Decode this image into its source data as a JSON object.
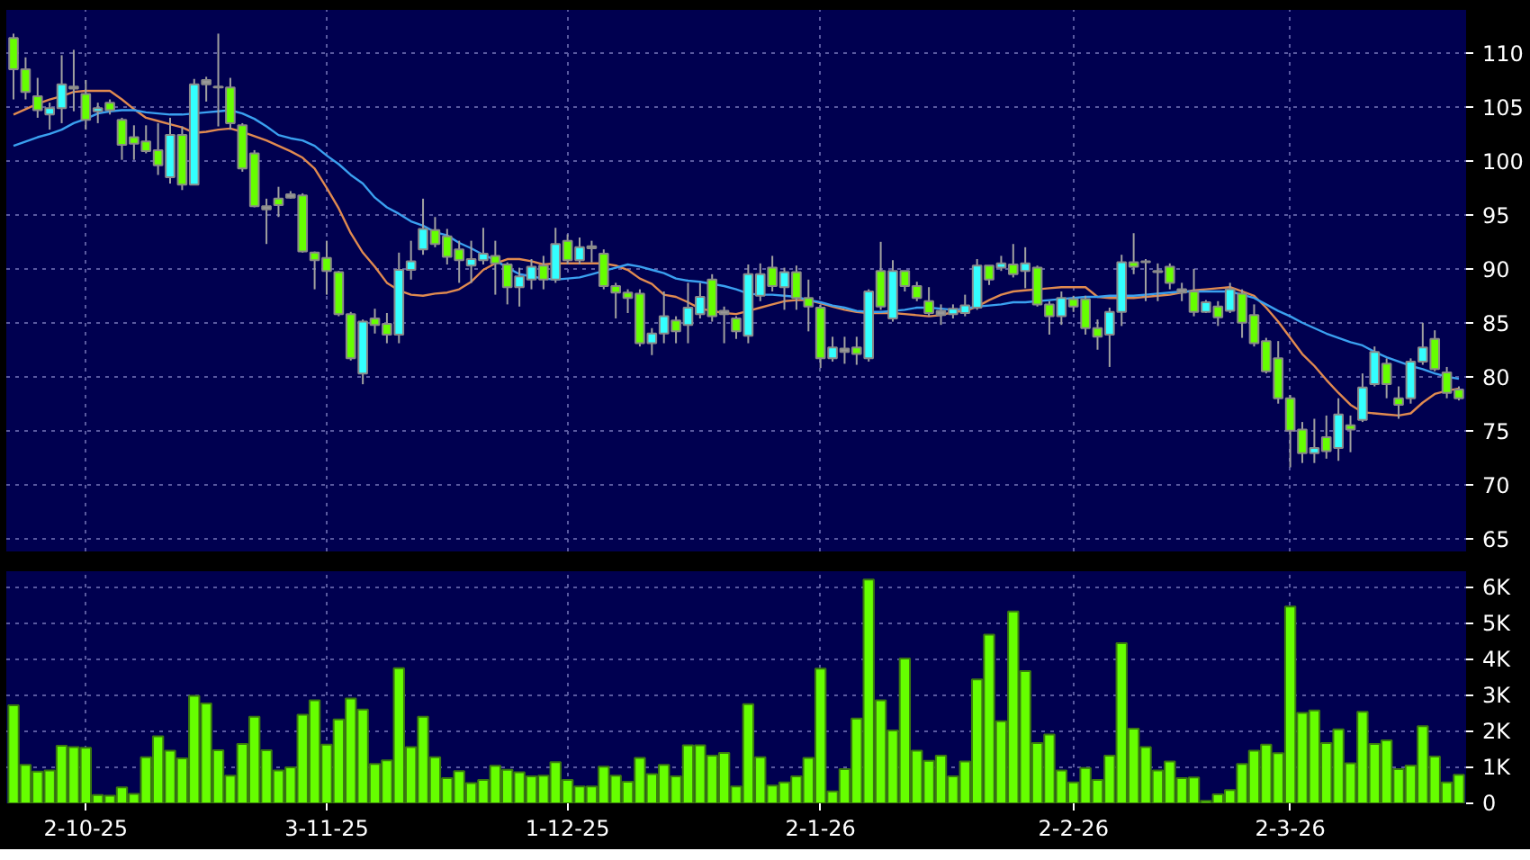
{
  "chart_data": [
    {
      "type": "candlestick",
      "tick_labels": "y",
      "grid": true,
      "ylim": [
        63.8,
        114
      ],
      "yticks": [
        65,
        70,
        75,
        80,
        85,
        90,
        95,
        100,
        105,
        110
      ],
      "categories": [
        null,
        null,
        null,
        null,
        null,
        null,
        null,
        null,
        null,
        null,
        null,
        null,
        null,
        null,
        null,
        null,
        null,
        null,
        null,
        null,
        null,
        null,
        null,
        null,
        null,
        null,
        null,
        null,
        null,
        null,
        null,
        null,
        null,
        null,
        null,
        null,
        null,
        null,
        null,
        null,
        null,
        null,
        null,
        null,
        null,
        null,
        null,
        null,
        null,
        null,
        null,
        null,
        null,
        null,
        null,
        null,
        null,
        null,
        null,
        null,
        null,
        null,
        null,
        null,
        null,
        null,
        null,
        null,
        null,
        null,
        null,
        null,
        null,
        null,
        null,
        null,
        null,
        null,
        null,
        null,
        null,
        null,
        null,
        null,
        null,
        null,
        null,
        null,
        null,
        null,
        null,
        null,
        null,
        null,
        null,
        null,
        null,
        null,
        null,
        null,
        null,
        null,
        null,
        null,
        null,
        null,
        null,
        null,
        null,
        null,
        null,
        null,
        null,
        null,
        null,
        null,
        null,
        null,
        null,
        null,
        null
      ],
      "ohlc": [
        [
          111.4,
          111.8,
          105.7,
          108.5
        ],
        [
          108.5,
          109.6,
          105.7,
          106.4
        ],
        [
          106.0,
          107.7,
          104.0,
          104.7
        ],
        [
          104.3,
          105.4,
          102.9,
          104.9
        ],
        [
          104.9,
          109.8,
          103.5,
          107.1
        ],
        [
          106.9,
          110.3,
          104.6,
          106.7
        ],
        [
          106.2,
          107.5,
          102.9,
          103.8
        ],
        [
          104.6,
          105.4,
          103.5,
          104.9
        ],
        [
          105.4,
          105.7,
          104.3,
          104.7
        ],
        [
          103.8,
          104.0,
          100.1,
          101.5
        ],
        [
          102.2,
          103.3,
          100.1,
          101.6
        ],
        [
          101.8,
          103.3,
          100.7,
          100.9
        ],
        [
          101.0,
          103.5,
          98.7,
          99.6
        ],
        [
          98.5,
          104.0,
          97.9,
          102.4
        ],
        [
          102.4,
          103.2,
          97.3,
          97.8
        ],
        [
          97.8,
          107.6,
          97.8,
          107.1
        ],
        [
          107.5,
          107.8,
          105.5,
          107.1
        ],
        [
          106.9,
          111.8,
          103.2,
          106.8
        ],
        [
          106.8,
          107.7,
          102.9,
          103.5
        ],
        [
          103.3,
          103.5,
          99.0,
          99.3
        ],
        [
          100.7,
          101.0,
          95.7,
          95.8
        ],
        [
          95.8,
          96.5,
          92.3,
          95.5
        ],
        [
          96.5,
          97.6,
          94.8,
          95.9
        ],
        [
          96.9,
          97.2,
          96.5,
          96.6
        ],
        [
          96.8,
          97.0,
          91.5,
          91.6
        ],
        [
          91.5,
          91.6,
          88.1,
          90.8
        ],
        [
          91.0,
          92.6,
          87.6,
          89.8
        ],
        [
          89.7,
          89.8,
          85.6,
          85.8
        ],
        [
          85.8,
          86.0,
          81.5,
          81.7
        ],
        [
          80.3,
          85.3,
          79.3,
          85.1
        ],
        [
          85.4,
          86.3,
          84.0,
          84.8
        ],
        [
          84.9,
          85.9,
          83.1,
          83.9
        ],
        [
          83.9,
          91.5,
          83.1,
          89.9
        ],
        [
          89.9,
          92.6,
          89.0,
          90.7
        ],
        [
          91.8,
          96.5,
          91.3,
          93.7
        ],
        [
          93.6,
          94.8,
          92.0,
          92.3
        ],
        [
          93.0,
          93.7,
          90.4,
          91.1
        ],
        [
          91.8,
          92.6,
          88.7,
          90.8
        ],
        [
          90.3,
          92.6,
          88.7,
          90.9
        ],
        [
          90.8,
          93.8,
          90.4,
          91.4
        ],
        [
          91.2,
          92.6,
          87.6,
          90.5
        ],
        [
          90.4,
          90.6,
          86.7,
          88.3
        ],
        [
          88.3,
          90.1,
          86.5,
          89.3
        ],
        [
          89.0,
          90.9,
          88.1,
          90.2
        ],
        [
          90.3,
          91.2,
          88.1,
          89.0
        ],
        [
          89.0,
          93.8,
          88.7,
          92.3
        ],
        [
          92.6,
          93.2,
          90.4,
          90.8
        ],
        [
          90.8,
          92.9,
          90.4,
          92.0
        ],
        [
          92.1,
          92.6,
          90.6,
          91.9
        ],
        [
          91.4,
          91.8,
          88.1,
          88.4
        ],
        [
          88.4,
          88.7,
          85.4,
          87.8
        ],
        [
          87.8,
          88.1,
          85.9,
          87.3
        ],
        [
          87.7,
          88.1,
          82.8,
          83.1
        ],
        [
          83.1,
          84.5,
          82.0,
          84.0
        ],
        [
          84.0,
          87.9,
          83.1,
          85.6
        ],
        [
          85.2,
          85.6,
          83.1,
          84.2
        ],
        [
          84.8,
          88.7,
          83.1,
          86.4
        ],
        [
          85.8,
          88.7,
          85.4,
          87.4
        ],
        [
          89.0,
          89.5,
          85.1,
          85.6
        ],
        [
          86.1,
          86.5,
          83.1,
          85.8
        ],
        [
          85.4,
          85.6,
          83.5,
          84.2
        ],
        [
          83.8,
          90.4,
          83.1,
          89.5
        ],
        [
          87.5,
          90.5,
          87.0,
          89.5
        ],
        [
          90.1,
          91.2,
          87.9,
          88.4
        ],
        [
          88.3,
          90.1,
          86.2,
          89.7
        ],
        [
          89.7,
          90.3,
          86.2,
          87.3
        ],
        [
          87.3,
          89.0,
          84.2,
          86.5
        ],
        [
          86.4,
          86.7,
          80.8,
          81.7
        ],
        [
          81.7,
          83.7,
          81.4,
          82.7
        ],
        [
          82.6,
          83.7,
          81.2,
          82.3
        ],
        [
          82.7,
          83.7,
          81.1,
          82.1
        ],
        [
          81.7,
          88.1,
          81.4,
          87.9
        ],
        [
          89.8,
          92.5,
          86.2,
          86.5
        ],
        [
          85.4,
          90.8,
          85.1,
          89.8
        ],
        [
          89.8,
          89.8,
          87.9,
          88.4
        ],
        [
          88.4,
          88.8,
          87.0,
          87.3
        ],
        [
          87.0,
          88.3,
          85.6,
          85.9
        ],
        [
          86.1,
          86.7,
          84.8,
          85.7
        ],
        [
          85.8,
          86.7,
          85.4,
          86.3
        ],
        [
          85.9,
          87.6,
          85.6,
          86.6
        ],
        [
          86.4,
          90.9,
          86.2,
          90.3
        ],
        [
          90.3,
          90.3,
          88.5,
          89.0
        ],
        [
          90.1,
          91.2,
          89.8,
          90.5
        ],
        [
          90.4,
          92.3,
          89.2,
          89.5
        ],
        [
          89.8,
          92.0,
          88.2,
          90.5
        ],
        [
          90.1,
          90.3,
          86.5,
          86.7
        ],
        [
          86.7,
          87.0,
          83.9,
          85.6
        ],
        [
          85.6,
          87.9,
          84.8,
          87.3
        ],
        [
          87.2,
          87.5,
          86.0,
          86.5
        ],
        [
          87.2,
          87.5,
          83.9,
          84.5
        ],
        [
          84.5,
          85.3,
          82.5,
          83.7
        ],
        [
          83.9,
          86.4,
          80.9,
          86.0
        ],
        [
          86.0,
          91.3,
          84.7,
          90.6
        ],
        [
          90.6,
          93.3,
          89.5,
          90.2
        ],
        [
          90.7,
          90.9,
          87.0,
          90.6
        ],
        [
          89.8,
          90.5,
          87.0,
          89.7
        ],
        [
          90.2,
          90.5,
          88.1,
          88.7
        ],
        [
          88.1,
          88.7,
          87.0,
          87.8
        ],
        [
          87.9,
          90.0,
          85.6,
          86.0
        ],
        [
          86.0,
          87.1,
          85.9,
          86.9
        ],
        [
          86.5,
          87.0,
          84.7,
          85.5
        ],
        [
          86.1,
          88.7,
          85.9,
          88.1
        ],
        [
          87.7,
          88.1,
          83.6,
          85.0
        ],
        [
          85.7,
          86.7,
          82.8,
          83.1
        ],
        [
          83.3,
          83.6,
          80.3,
          80.5
        ],
        [
          81.7,
          83.3,
          77.5,
          78.0
        ],
        [
          78.0,
          78.3,
          71.6,
          75.0
        ],
        [
          75.1,
          75.8,
          72.0,
          72.9
        ],
        [
          72.9,
          76.1,
          72.0,
          73.4
        ],
        [
          74.4,
          76.4,
          72.4,
          73.1
        ],
        [
          73.4,
          78.0,
          72.2,
          76.5
        ],
        [
          75.5,
          76.4,
          73.0,
          75.1
        ],
        [
          76.0,
          80.3,
          75.8,
          79.0
        ],
        [
          79.3,
          82.8,
          79.1,
          82.3
        ],
        [
          81.2,
          81.7,
          78.0,
          79.3
        ],
        [
          78.0,
          79.1,
          76.1,
          77.4
        ],
        [
          78.0,
          81.7,
          77.5,
          81.4
        ],
        [
          81.4,
          85.0,
          81.1,
          82.7
        ],
        [
          83.5,
          84.3,
          80.5,
          80.7
        ],
        [
          80.4,
          80.9,
          78.0,
          78.5
        ],
        [
          78.8,
          79.1,
          77.8,
          78.0
        ]
      ],
      "colors": [
        "#66ff00",
        "#66ff00",
        "#66ff00",
        "#33ffff",
        "#33ffff",
        "#999999",
        "#66ff00",
        "#33ffff",
        "#66ff00",
        "#66ff00",
        "#66ff00",
        "#66ff00",
        "#66ff00",
        "#33ffff",
        "#66ff00",
        "#33ffff",
        "#999999",
        "#999999",
        "#66ff00",
        "#66ff00",
        "#66ff00",
        "#999999",
        "#66ff00",
        "#999999",
        "#66ff00",
        "#66ff00",
        "#66ff00",
        "#66ff00",
        "#66ff00",
        "#33ffff",
        "#66ff00",
        "#66ff00",
        "#33ffff",
        "#33ffff",
        "#33ffff",
        "#66ff00",
        "#66ff00",
        "#66ff00",
        "#33ffff",
        "#33ffff",
        "#66ff00",
        "#66ff00",
        "#33ffff",
        "#33ffff",
        "#66ff00",
        "#33ffff",
        "#66ff00",
        "#33ffff",
        "#999999",
        "#66ff00",
        "#66ff00",
        "#66ff00",
        "#66ff00",
        "#33ffff",
        "#33ffff",
        "#66ff00",
        "#33ffff",
        "#33ffff",
        "#66ff00",
        "#999999",
        "#66ff00",
        "#33ffff",
        "#33ffff",
        "#66ff00",
        "#33ffff",
        "#66ff00",
        "#66ff00",
        "#66ff00",
        "#33ffff",
        "#999999",
        "#66ff00",
        "#33ffff",
        "#66ff00",
        "#33ffff",
        "#66ff00",
        "#66ff00",
        "#66ff00",
        "#999999",
        "#33ffff",
        "#33ffff",
        "#33ffff",
        "#66ff00",
        "#33ffff",
        "#66ff00",
        "#33ffff",
        "#66ff00",
        "#66ff00",
        "#33ffff",
        "#66ff00",
        "#66ff00",
        "#66ff00",
        "#33ffff",
        "#33ffff",
        "#66ff00",
        "#999999",
        "#999999",
        "#66ff00",
        "#999999",
        "#66ff00",
        "#33ffff",
        "#66ff00",
        "#33ffff",
        "#66ff00",
        "#66ff00",
        "#66ff00",
        "#66ff00",
        "#66ff00",
        "#66ff00",
        "#33ffff",
        "#66ff00",
        "#33ffff",
        "#66ff00",
        "#33ffff",
        "#33ffff",
        "#66ff00",
        "#66ff00",
        "#33ffff",
        "#33ffff",
        "#66ff00",
        "#66ff00",
        "#66ff00"
      ],
      "series": [
        {
          "type": "line",
          "color": "#e08a50",
          "values": [
            104.3,
            104.8,
            105.3,
            105.7,
            106.0,
            106.4,
            106.5,
            106.5,
            106.5,
            105.7,
            104.8,
            104.0,
            103.7,
            103.4,
            103.1,
            102.6,
            102.7,
            102.9,
            103.0,
            102.7,
            102.3,
            101.9,
            101.4,
            100.9,
            100.3,
            99.3,
            97.5,
            95.6,
            93.3,
            91.5,
            90.2,
            88.7,
            88.0,
            87.6,
            87.5,
            87.7,
            87.8,
            88.1,
            88.8,
            89.9,
            90.5,
            90.9,
            90.9,
            90.7,
            90.4,
            90.5,
            90.5,
            90.5,
            90.5,
            90.5,
            90.3,
            89.9,
            89.1,
            88.6,
            87.6,
            87.4,
            86.9,
            86.3,
            86.1,
            85.9,
            85.8,
            86.1,
            86.4,
            86.7,
            87.0,
            87.1,
            87.1,
            86.8,
            86.5,
            86.2,
            86.0,
            85.9,
            85.9,
            85.9,
            85.8,
            85.7,
            85.6,
            85.7,
            86.0,
            86.1,
            86.5,
            87.1,
            87.6,
            87.9,
            88.0,
            88.1,
            88.2,
            88.3,
            88.3,
            88.3,
            87.4,
            87.3,
            87.3,
            87.3,
            87.4,
            87.5,
            87.6,
            87.8,
            88.0,
            88.1,
            88.2,
            88.3,
            87.9,
            87.5,
            86.4,
            85.1,
            83.6,
            82.1,
            81.0,
            79.7,
            78.5,
            77.4,
            76.7,
            76.6,
            76.5,
            76.4,
            76.6,
            77.6,
            78.4,
            78.7,
            78.9
          ]
        },
        {
          "type": "line",
          "color": "#3aa0f0",
          "values": [
            101.4,
            101.8,
            102.2,
            102.5,
            102.9,
            103.5,
            103.9,
            104.4,
            104.6,
            104.7,
            104.7,
            104.5,
            104.4,
            104.3,
            104.3,
            104.4,
            104.5,
            104.6,
            104.7,
            104.4,
            103.9,
            103.2,
            102.4,
            102.1,
            101.9,
            101.4,
            100.5,
            99.7,
            98.7,
            97.9,
            96.6,
            95.7,
            95.1,
            94.4,
            94.0,
            93.4,
            93.1,
            92.4,
            91.9,
            91.3,
            90.8,
            90.1,
            89.5,
            89.3,
            89.1,
            89.0,
            89.1,
            89.2,
            89.5,
            89.8,
            90.1,
            90.4,
            90.2,
            89.9,
            89.6,
            89.1,
            88.9,
            88.8,
            88.6,
            88.4,
            88.1,
            87.7,
            87.6,
            87.6,
            87.5,
            87.4,
            87.1,
            86.9,
            86.6,
            86.4,
            86.1,
            86.0,
            86.0,
            86.1,
            86.2,
            86.4,
            86.4,
            86.3,
            86.2,
            86.3,
            86.5,
            86.6,
            86.7,
            86.9,
            86.9,
            87.0,
            87.1,
            87.2,
            87.3,
            87.4,
            87.4,
            87.5,
            87.5,
            87.5,
            87.6,
            87.7,
            87.8,
            87.9,
            87.9,
            87.9,
            87.9,
            87.9,
            87.6,
            87.3,
            86.7,
            86.1,
            85.6,
            85.0,
            84.5,
            84.0,
            83.6,
            83.2,
            82.9,
            82.3,
            81.8,
            81.4,
            81.0,
            80.7,
            80.3,
            80.0,
            79.8
          ]
        }
      ]
    },
    {
      "type": "bar",
      "grid": true,
      "color": "#66ff00",
      "ylim": [
        0,
        6440
      ],
      "yticks": [
        0,
        {
          "value": 1000,
          "label": "1K"
        },
        {
          "value": 2000,
          "label": "2K"
        },
        {
          "value": 3000,
          "label": "3K"
        },
        {
          "value": 4000,
          "label": "4K"
        },
        {
          "value": 5000,
          "label": "5K"
        },
        {
          "value": 6000,
          "label": "6K"
        }
      ],
      "categories": [
        null,
        null,
        null,
        null,
        null,
        null,
        "2-10-25",
        null,
        null,
        null,
        null,
        null,
        null,
        null,
        null,
        null,
        null,
        null,
        null,
        null,
        null,
        null,
        null,
        null,
        null,
        null,
        "3-11-25",
        null,
        null,
        null,
        null,
        null,
        null,
        null,
        null,
        null,
        null,
        null,
        null,
        null,
        null,
        null,
        null,
        null,
        null,
        null,
        "1-12-25",
        null,
        null,
        null,
        null,
        null,
        null,
        null,
        null,
        null,
        null,
        null,
        null,
        null,
        null,
        null,
        null,
        null,
        null,
        null,
        null,
        "2-1-26",
        null,
        null,
        null,
        null,
        null,
        null,
        null,
        null,
        null,
        null,
        null,
        null,
        null,
        null,
        null,
        null,
        null,
        null,
        null,
        null,
        "2-2-26",
        null,
        null,
        null,
        null,
        null,
        null,
        null,
        null,
        null,
        null,
        null,
        null,
        null,
        null,
        null,
        null,
        null,
        "2-3-26",
        null,
        null,
        null,
        null,
        null,
        null,
        null,
        null,
        null,
        null,
        null,
        null,
        null,
        null
      ],
      "values": [
        2720,
        1070,
        880,
        910,
        1600,
        1560,
        1540,
        230,
        210,
        440,
        260,
        1280,
        1860,
        1460,
        1250,
        2980,
        2770,
        1470,
        770,
        1650,
        2400,
        1470,
        910,
        1000,
        2460,
        2860,
        1630,
        2330,
        2910,
        2600,
        1090,
        1190,
        3750,
        1560,
        2400,
        1280,
        700,
        890,
        560,
        650,
        1040,
        930,
        860,
        750,
        770,
        1140,
        650,
        470,
        470,
        1020,
        770,
        600,
        1260,
        810,
        1070,
        750,
        1610,
        1610,
        1320,
        1400,
        470,
        2750,
        1280,
        490,
        580,
        750,
        1260,
        3740,
        330,
        950,
        2350,
        6210,
        2860,
        2020,
        4020,
        1460,
        1180,
        1320,
        750,
        1160,
        3440,
        4680,
        2280,
        5320,
        3670,
        1670,
        1910,
        910,
        580,
        980,
        650,
        1320,
        4440,
        2070,
        1560,
        910,
        1160,
        700,
        720,
        70,
        250,
        370,
        1090,
        1460,
        1630,
        1390,
        5460,
        2510,
        2580,
        1670,
        2050,
        1110,
        2540,
        1650,
        1750,
        950,
        1050,
        2140,
        1300,
        580,
        790
      ]
    }
  ]
}
